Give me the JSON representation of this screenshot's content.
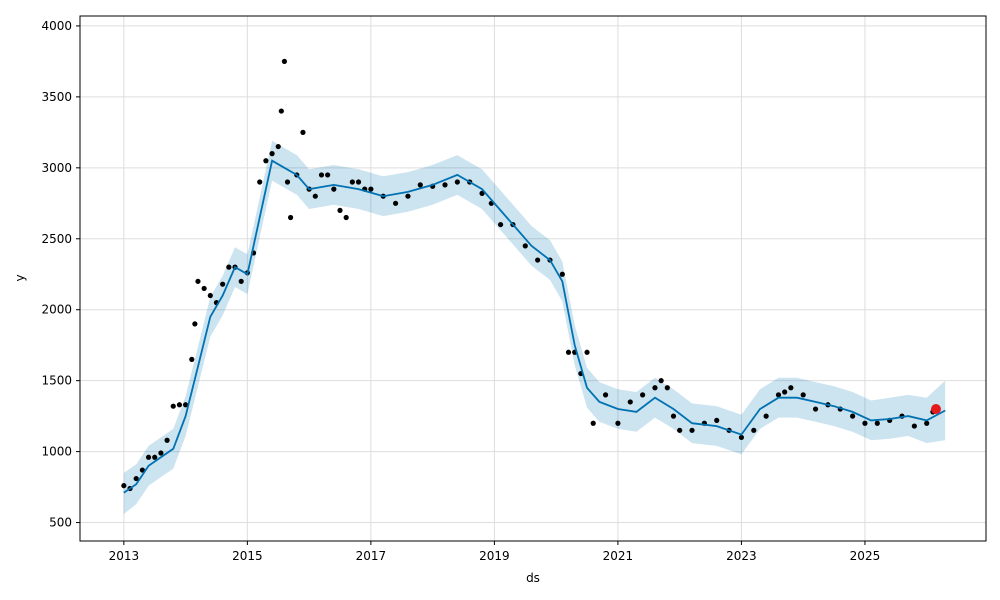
{
  "chart_data": {
    "type": "scatter",
    "xlabel": "ds",
    "ylabel": "y",
    "xlim": [
      2012.29,
      2026.96
    ],
    "ylim": [
      370,
      4070
    ],
    "grid": true,
    "x_ticks": [
      {
        "value": 2013,
        "label": "2013"
      },
      {
        "value": 2015,
        "label": "2015"
      },
      {
        "value": 2017,
        "label": "2017"
      },
      {
        "value": 2019,
        "label": "2019"
      },
      {
        "value": 2021,
        "label": "2021"
      },
      {
        "value": 2023,
        "label": "2023"
      },
      {
        "value": 2025,
        "label": "2025"
      }
    ],
    "y_ticks": [
      {
        "value": 500,
        "label": "500"
      },
      {
        "value": 1000,
        "label": "1000"
      },
      {
        "value": 1500,
        "label": "1500"
      },
      {
        "value": 2000,
        "label": "2000"
      },
      {
        "value": 2500,
        "label": "2500"
      },
      {
        "value": 3000,
        "label": "3000"
      },
      {
        "value": 3500,
        "label": "3500"
      },
      {
        "value": 4000,
        "label": "4000"
      }
    ],
    "colors": {
      "observed": "#000000",
      "forecast": "#0072B2",
      "interval": "#0072B2",
      "highlight": "#e41a1c",
      "grid": "#dddddd"
    },
    "series": [
      {
        "kind": "observed",
        "x": [
          2013.0,
          2013.1,
          2013.2,
          2013.3,
          2013.4,
          2013.5,
          2013.6,
          2013.7,
          2013.8,
          2013.9,
          2014.0,
          2014.1,
          2014.15,
          2014.2,
          2014.3,
          2014.4,
          2014.5,
          2014.6,
          2014.7,
          2014.8,
          2014.9,
          2015.0,
          2015.1,
          2015.2,
          2015.3,
          2015.4,
          2015.5,
          2015.55,
          2015.6,
          2015.65,
          2015.7,
          2015.8,
          2015.9,
          2016.0,
          2016.1,
          2016.2,
          2016.3,
          2016.4,
          2016.5,
          2016.6,
          2016.7,
          2016.8,
          2016.9,
          2017.0,
          2017.2,
          2017.4,
          2017.6,
          2017.8,
          2018.0,
          2018.2,
          2018.4,
          2018.6,
          2018.8,
          2018.95,
          2019.1,
          2019.3,
          2019.5,
          2019.7,
          2019.9,
          2020.1,
          2020.2,
          2020.3,
          2020.4,
          2020.5,
          2020.6,
          2020.8,
          2021.0,
          2021.2,
          2021.4,
          2021.6,
          2021.7,
          2021.8,
          2021.9,
          2022.0,
          2022.2,
          2022.4,
          2022.6,
          2022.8,
          2023.0,
          2023.2,
          2023.4,
          2023.6,
          2023.7,
          2023.8,
          2024.0,
          2024.2,
          2024.4,
          2024.6,
          2024.8,
          2025.0,
          2025.2,
          2025.4,
          2025.6,
          2025.8,
          2026.0,
          2026.1
        ],
        "y": [
          760,
          740,
          810,
          870,
          960,
          960,
          990,
          1080,
          1320,
          1330,
          1330,
          1650,
          1900,
          2200,
          2150,
          2100,
          2050,
          2180,
          2300,
          2300,
          2200,
          2260,
          2400,
          2900,
          3050,
          3100,
          3150,
          3400,
          3750,
          2900,
          2650,
          2950,
          3250,
          2850,
          2800,
          2950,
          2950,
          2850,
          2700,
          2650,
          2900,
          2900,
          2850,
          2850,
          2800,
          2750,
          2800,
          2880,
          2870,
          2880,
          2900,
          2900,
          2820,
          2750,
          2600,
          2600,
          2450,
          2350,
          2350,
          2250,
          1700,
          1700,
          1550,
          1700,
          1200,
          1400,
          1200,
          1350,
          1400,
          1450,
          1500,
          1450,
          1250,
          1150,
          1150,
          1200,
          1220,
          1150,
          1100,
          1150,
          1250,
          1400,
          1420,
          1450,
          1400,
          1300,
          1330,
          1300,
          1250,
          1200,
          1200,
          1220,
          1250,
          1180,
          1200,
          1280
        ]
      },
      {
        "kind": "forecast",
        "x": [
          2013.0,
          2013.2,
          2013.4,
          2013.6,
          2013.8,
          2014.0,
          2014.2,
          2014.4,
          2014.6,
          2014.8,
          2015.0,
          2015.2,
          2015.4,
          2015.6,
          2015.8,
          2016.0,
          2016.4,
          2016.8,
          2017.2,
          2017.6,
          2018.0,
          2018.4,
          2018.8,
          2019.2,
          2019.6,
          2019.9,
          2020.1,
          2020.3,
          2020.5,
          2020.7,
          2021.0,
          2021.3,
          2021.6,
          2021.9,
          2022.2,
          2022.6,
          2023.0,
          2023.3,
          2023.6,
          2023.9,
          2024.2,
          2024.5,
          2024.8,
          2025.1,
          2025.4,
          2025.7,
          2026.0,
          2026.3
        ],
        "y": [
          710,
          770,
          900,
          960,
          1020,
          1250,
          1600,
          1950,
          2100,
          2300,
          2250,
          2650,
          3050,
          3000,
          2950,
          2850,
          2880,
          2850,
          2800,
          2830,
          2880,
          2950,
          2850,
          2650,
          2450,
          2350,
          2200,
          1750,
          1450,
          1350,
          1300,
          1280,
          1380,
          1300,
          1200,
          1180,
          1120,
          1300,
          1380,
          1380,
          1350,
          1320,
          1280,
          1220,
          1230,
          1250,
          1220,
          1290
        ]
      },
      {
        "kind": "interval_upper",
        "x": [
          2013.0,
          2013.2,
          2013.4,
          2013.6,
          2013.8,
          2014.0,
          2014.2,
          2014.4,
          2014.6,
          2014.8,
          2015.0,
          2015.2,
          2015.4,
          2015.6,
          2015.8,
          2016.0,
          2016.4,
          2016.8,
          2017.2,
          2017.6,
          2018.0,
          2018.4,
          2018.8,
          2019.2,
          2019.6,
          2019.9,
          2020.1,
          2020.3,
          2020.5,
          2020.7,
          2021.0,
          2021.3,
          2021.6,
          2021.9,
          2022.2,
          2022.6,
          2023.0,
          2023.3,
          2023.6,
          2023.9,
          2024.2,
          2024.5,
          2024.8,
          2025.1,
          2025.4,
          2025.7,
          2026.0,
          2026.3
        ],
        "y": [
          850,
          910,
          1040,
          1100,
          1160,
          1390,
          1740,
          2090,
          2240,
          2440,
          2390,
          2790,
          3190,
          3140,
          3090,
          2990,
          3020,
          2990,
          2940,
          2970,
          3020,
          3090,
          2990,
          2790,
          2590,
          2490,
          2340,
          1890,
          1590,
          1490,
          1440,
          1420,
          1520,
          1440,
          1340,
          1320,
          1260,
          1440,
          1520,
          1520,
          1490,
          1460,
          1420,
          1360,
          1380,
          1400,
          1380,
          1500
        ]
      },
      {
        "kind": "interval_lower",
        "x": [
          2013.0,
          2013.2,
          2013.4,
          2013.6,
          2013.8,
          2014.0,
          2014.2,
          2014.4,
          2014.6,
          2014.8,
          2015.0,
          2015.2,
          2015.4,
          2015.6,
          2015.8,
          2016.0,
          2016.4,
          2016.8,
          2017.2,
          2017.6,
          2018.0,
          2018.4,
          2018.8,
          2019.2,
          2019.6,
          2019.9,
          2020.1,
          2020.3,
          2020.5,
          2020.7,
          2021.0,
          2021.3,
          2021.6,
          2021.9,
          2022.2,
          2022.6,
          2023.0,
          2023.3,
          2023.6,
          2023.9,
          2024.2,
          2024.5,
          2024.8,
          2025.1,
          2025.4,
          2025.7,
          2026.0,
          2026.3
        ],
        "y": [
          560,
          630,
          760,
          820,
          880,
          1110,
          1460,
          1810,
          1960,
          2160,
          2110,
          2510,
          2910,
          2860,
          2810,
          2710,
          2740,
          2710,
          2660,
          2690,
          2740,
          2810,
          2710,
          2510,
          2310,
          2210,
          2060,
          1610,
          1310,
          1210,
          1160,
          1140,
          1240,
          1160,
          1060,
          1040,
          980,
          1160,
          1240,
          1240,
          1210,
          1180,
          1140,
          1080,
          1090,
          1110,
          1060,
          1080
        ]
      }
    ],
    "highlight_point": {
      "x": 2026.15,
      "y": 1300
    }
  }
}
